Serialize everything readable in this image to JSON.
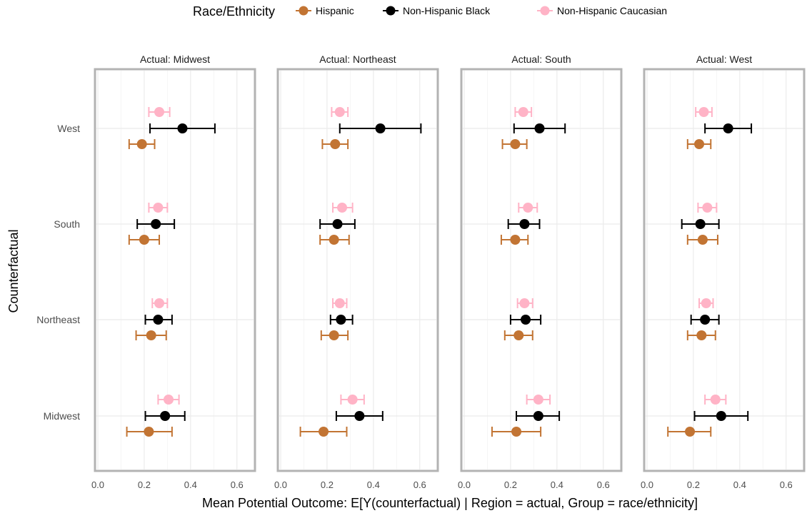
{
  "chart_data": {
    "type": "dot-errorbar",
    "x_axis": {
      "label": "Mean Potential Outcome: E[Y(counterfactual) | Region = actual, Group = race/ethnicity]",
      "range": [
        0,
        0.65
      ],
      "ticks": [
        0,
        0.1,
        0.2,
        0.3,
        0.4,
        0.5,
        0.6
      ],
      "tick_labels": [
        "0.0",
        "0.2",
        "0.4",
        "0.6"
      ],
      "tick_label_values": [
        0,
        0.2,
        0.4,
        0.6
      ]
    },
    "y_axis": {
      "label": "Counterfactual",
      "categories": [
        "Midwest",
        "Northeast",
        "South",
        "West"
      ]
    },
    "legend": {
      "title": "Race/Ethnicity",
      "position": "top",
      "items": [
        {
          "name": "Hispanic",
          "color": "#c27433"
        },
        {
          "name": "Non-Hispanic Black",
          "color": "#000000"
        },
        {
          "name": "Non-Hispanic Caucasian",
          "color": "#ffb3c6"
        }
      ]
    },
    "panels": [
      {
        "title": "Actual: Midwest",
        "rows": [
          {
            "category": "Midwest",
            "points": [
              {
                "group": "Hispanic",
                "mean": 0.22,
                "low": 0.125,
                "high": 0.32
              },
              {
                "group": "Non-Hispanic Black",
                "mean": 0.29,
                "low": 0.205,
                "high": 0.375
              },
              {
                "group": "Non-Hispanic Caucasian",
                "mean": 0.305,
                "low": 0.26,
                "high": 0.35
              }
            ]
          },
          {
            "category": "Northeast",
            "points": [
              {
                "group": "Hispanic",
                "mean": 0.23,
                "low": 0.165,
                "high": 0.295
              },
              {
                "group": "Non-Hispanic Black",
                "mean": 0.26,
                "low": 0.205,
                "high": 0.32
              },
              {
                "group": "Non-Hispanic Caucasian",
                "mean": 0.265,
                "low": 0.235,
                "high": 0.3
              }
            ]
          },
          {
            "category": "South",
            "points": [
              {
                "group": "Hispanic",
                "mean": 0.2,
                "low": 0.135,
                "high": 0.265
              },
              {
                "group": "Non-Hispanic Black",
                "mean": 0.25,
                "low": 0.17,
                "high": 0.33
              },
              {
                "group": "Non-Hispanic Caucasian",
                "mean": 0.26,
                "low": 0.22,
                "high": 0.3
              }
            ]
          },
          {
            "category": "West",
            "points": [
              {
                "group": "Hispanic",
                "mean": 0.19,
                "low": 0.135,
                "high": 0.245
              },
              {
                "group": "Non-Hispanic Black",
                "mean": 0.365,
                "low": 0.225,
                "high": 0.505
              },
              {
                "group": "Non-Hispanic Caucasian",
                "mean": 0.265,
                "low": 0.22,
                "high": 0.31
              }
            ]
          }
        ]
      },
      {
        "title": "Actual: Northeast",
        "rows": [
          {
            "category": "Midwest",
            "points": [
              {
                "group": "Hispanic",
                "mean": 0.185,
                "low": 0.085,
                "high": 0.285
              },
              {
                "group": "Non-Hispanic Black",
                "mean": 0.34,
                "low": 0.24,
                "high": 0.44
              },
              {
                "group": "Non-Hispanic Caucasian",
                "mean": 0.31,
                "low": 0.26,
                "high": 0.36
              }
            ]
          },
          {
            "category": "Northeast",
            "points": [
              {
                "group": "Hispanic",
                "mean": 0.23,
                "low": 0.175,
                "high": 0.29
              },
              {
                "group": "Non-Hispanic Black",
                "mean": 0.26,
                "low": 0.215,
                "high": 0.31
              },
              {
                "group": "Non-Hispanic Caucasian",
                "mean": 0.255,
                "low": 0.225,
                "high": 0.285
              }
            ]
          },
          {
            "category": "South",
            "points": [
              {
                "group": "Hispanic",
                "mean": 0.23,
                "low": 0.17,
                "high": 0.295
              },
              {
                "group": "Non-Hispanic Black",
                "mean": 0.245,
                "low": 0.17,
                "high": 0.32
              },
              {
                "group": "Non-Hispanic Caucasian",
                "mean": 0.265,
                "low": 0.225,
                "high": 0.31
              }
            ]
          },
          {
            "category": "West",
            "points": [
              {
                "group": "Hispanic",
                "mean": 0.235,
                "low": 0.18,
                "high": 0.29
              },
              {
                "group": "Non-Hispanic Black",
                "mean": 0.43,
                "low": 0.255,
                "high": 0.605
              },
              {
                "group": "Non-Hispanic Caucasian",
                "mean": 0.255,
                "low": 0.22,
                "high": 0.29
              }
            ]
          }
        ]
      },
      {
        "title": "Actual: South",
        "rows": [
          {
            "category": "Midwest",
            "points": [
              {
                "group": "Hispanic",
                "mean": 0.225,
                "low": 0.12,
                "high": 0.33
              },
              {
                "group": "Non-Hispanic Black",
                "mean": 0.32,
                "low": 0.225,
                "high": 0.41
              },
              {
                "group": "Non-Hispanic Caucasian",
                "mean": 0.32,
                "low": 0.27,
                "high": 0.37
              }
            ]
          },
          {
            "category": "Northeast",
            "points": [
              {
                "group": "Hispanic",
                "mean": 0.235,
                "low": 0.175,
                "high": 0.295
              },
              {
                "group": "Non-Hispanic Black",
                "mean": 0.265,
                "low": 0.2,
                "high": 0.33
              },
              {
                "group": "Non-Hispanic Caucasian",
                "mean": 0.26,
                "low": 0.23,
                "high": 0.295
              }
            ]
          },
          {
            "category": "South",
            "points": [
              {
                "group": "Hispanic",
                "mean": 0.22,
                "low": 0.16,
                "high": 0.275
              },
              {
                "group": "Non-Hispanic Black",
                "mean": 0.26,
                "low": 0.19,
                "high": 0.325
              },
              {
                "group": "Non-Hispanic Caucasian",
                "mean": 0.275,
                "low": 0.235,
                "high": 0.315
              }
            ]
          },
          {
            "category": "West",
            "points": [
              {
                "group": "Hispanic",
                "mean": 0.22,
                "low": 0.165,
                "high": 0.27
              },
              {
                "group": "Non-Hispanic Black",
                "mean": 0.325,
                "low": 0.215,
                "high": 0.435
              },
              {
                "group": "Non-Hispanic Caucasian",
                "mean": 0.255,
                "low": 0.22,
                "high": 0.29
              }
            ]
          }
        ]
      },
      {
        "title": "Actual: West",
        "rows": [
          {
            "category": "Midwest",
            "points": [
              {
                "group": "Hispanic",
                "mean": 0.185,
                "low": 0.09,
                "high": 0.275
              },
              {
                "group": "Non-Hispanic Black",
                "mean": 0.32,
                "low": 0.205,
                "high": 0.435
              },
              {
                "group": "Non-Hispanic Caucasian",
                "mean": 0.295,
                "low": 0.25,
                "high": 0.34
              }
            ]
          },
          {
            "category": "Northeast",
            "points": [
              {
                "group": "Hispanic",
                "mean": 0.235,
                "low": 0.175,
                "high": 0.295
              },
              {
                "group": "Non-Hispanic Black",
                "mean": 0.25,
                "low": 0.19,
                "high": 0.31
              },
              {
                "group": "Non-Hispanic Caucasian",
                "mean": 0.255,
                "low": 0.225,
                "high": 0.285
              }
            ]
          },
          {
            "category": "South",
            "points": [
              {
                "group": "Hispanic",
                "mean": 0.24,
                "low": 0.175,
                "high": 0.305
              },
              {
                "group": "Non-Hispanic Black",
                "mean": 0.23,
                "low": 0.15,
                "high": 0.31
              },
              {
                "group": "Non-Hispanic Caucasian",
                "mean": 0.26,
                "low": 0.22,
                "high": 0.3
              }
            ]
          },
          {
            "category": "West",
            "points": [
              {
                "group": "Hispanic",
                "mean": 0.225,
                "low": 0.175,
                "high": 0.275
              },
              {
                "group": "Non-Hispanic Black",
                "mean": 0.35,
                "low": 0.25,
                "high": 0.45
              },
              {
                "group": "Non-Hispanic Caucasian",
                "mean": 0.245,
                "low": 0.21,
                "high": 0.28
              }
            ]
          }
        ]
      }
    ]
  }
}
